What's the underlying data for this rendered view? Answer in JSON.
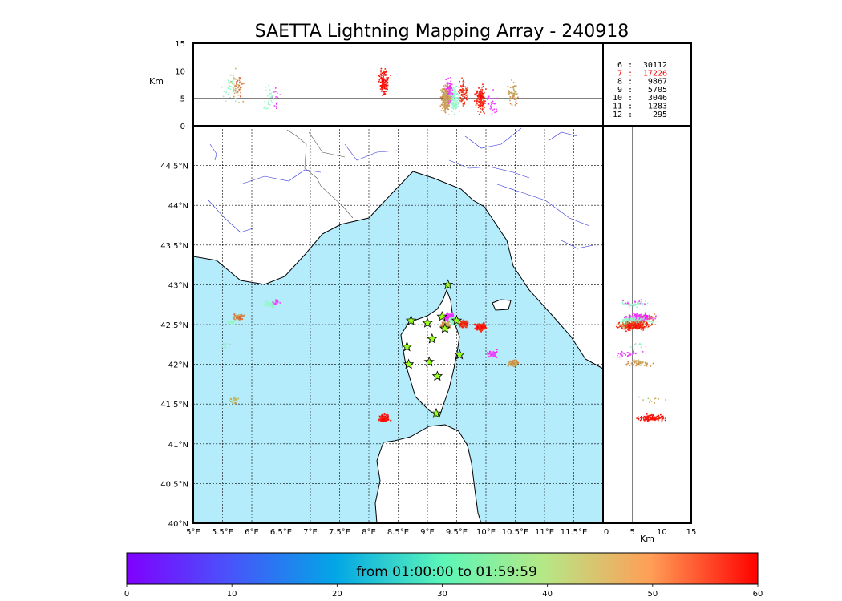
{
  "chart_data": {
    "type": "scatter",
    "title": "SAETTA Lightning Mapping Array - 240918",
    "colors": {
      "sea": "#b5ecfb",
      "stations": "#9bff22",
      "highlight": "#ff0000",
      "rivers": "#3333dd",
      "coast": "#000000",
      "borders": "#555555"
    },
    "map": {
      "type": "map",
      "lon_range": [
        5,
        12
      ],
      "lat_range": [
        40,
        45
      ],
      "lon_ticks": [
        "5°E",
        "5.5°E",
        "6°E",
        "6.5°E",
        "7°E",
        "7.5°E",
        "8°E",
        "8.5°E",
        "9°E",
        "9.5°E",
        "10°E",
        "10.5°E",
        "11°E",
        "11.5°E"
      ],
      "lat_ticks": [
        "40°N",
        "40.5°N",
        "41°N",
        "41.5°N",
        "42°N",
        "42.5°N",
        "43°N",
        "43.5°N",
        "44°N",
        "44.5°N"
      ],
      "grid": true,
      "stations": [
        {
          "lon": 9.35,
          "lat": 43.0
        },
        {
          "lon": 8.72,
          "lat": 42.55
        },
        {
          "lon": 9.0,
          "lat": 42.52
        },
        {
          "lon": 9.25,
          "lat": 42.6
        },
        {
          "lon": 9.5,
          "lat": 42.55
        },
        {
          "lon": 9.3,
          "lat": 42.45
        },
        {
          "lon": 9.08,
          "lat": 42.32
        },
        {
          "lon": 8.65,
          "lat": 42.22
        },
        {
          "lon": 9.55,
          "lat": 42.12
        },
        {
          "lon": 8.68,
          "lat": 42.0
        },
        {
          "lon": 9.03,
          "lat": 42.03
        },
        {
          "lon": 9.17,
          "lat": 41.85
        },
        {
          "lon": 9.15,
          "lat": 41.38
        }
      ]
    },
    "clusters": [
      {
        "lon": 5.75,
        "lat": 42.6,
        "alt": 7,
        "time_min": 50,
        "n": 40
      },
      {
        "lon": 5.65,
        "lat": 42.55,
        "alt": 7,
        "time_min": 25,
        "n": 20
      },
      {
        "lon": 5.55,
        "lat": 42.25,
        "alt": 6,
        "time_min": 22,
        "n": 8
      },
      {
        "lon": 6.3,
        "lat": 42.76,
        "alt": 5,
        "time_min": 26,
        "n": 30
      },
      {
        "lon": 6.4,
        "lat": 42.78,
        "alt": 5,
        "time_min": 6,
        "n": 15
      },
      {
        "lon": 5.7,
        "lat": 41.56,
        "alt": 8,
        "time_min": 44,
        "n": 12
      },
      {
        "lon": 8.25,
        "lat": 41.33,
        "alt": 8,
        "time_min": 59,
        "n": 120
      },
      {
        "lon": 9.35,
        "lat": 42.6,
        "alt": 6,
        "time_min": 4,
        "n": 160
      },
      {
        "lon": 9.45,
        "lat": 42.55,
        "alt": 5,
        "time_min": 25,
        "n": 120
      },
      {
        "lon": 9.3,
        "lat": 42.5,
        "alt": 5,
        "time_min": 47,
        "n": 180
      },
      {
        "lon": 9.6,
        "lat": 42.52,
        "alt": 6,
        "time_min": 56,
        "n": 80
      },
      {
        "lon": 9.9,
        "lat": 42.48,
        "alt": 5,
        "time_min": 58,
        "n": 140
      },
      {
        "lon": 10.1,
        "lat": 42.15,
        "alt": 4,
        "time_min": 5,
        "n": 30
      },
      {
        "lon": 10.45,
        "lat": 42.02,
        "alt": 6,
        "time_min": 47,
        "n": 60
      }
    ],
    "altitude_panel": {
      "label": "Km",
      "ticks": [
        0,
        5,
        10,
        15
      ],
      "range": [
        0,
        15
      ]
    },
    "counts": [
      {
        "hour": "6",
        "count": "30112"
      },
      {
        "hour": "7",
        "count": "17226",
        "highlight": true
      },
      {
        "hour": "8",
        "count": "9867"
      },
      {
        "hour": "9",
        "count": "5705"
      },
      {
        "hour": "10",
        "count": "3046"
      },
      {
        "hour": "11",
        "count": "1283"
      },
      {
        "hour": "12",
        "count": "295"
      }
    ],
    "colorbar": {
      "label": "from 01:00:00 to 01:59:59",
      "range": [
        0,
        60
      ],
      "ticks": [
        0,
        10,
        20,
        30,
        40,
        50,
        60
      ],
      "colormap": "rainbow"
    }
  }
}
